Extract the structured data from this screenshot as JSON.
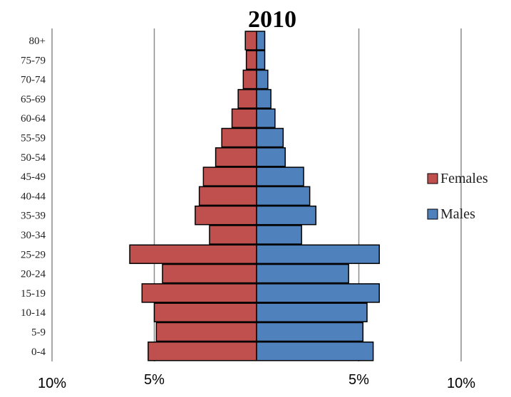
{
  "chart_data": {
    "type": "bar",
    "orientation": "horizontal",
    "subtype": "population-pyramid",
    "title": "2010",
    "categories": [
      "0-4",
      "5-9",
      "10-14",
      "15-19",
      "20-24",
      "25-29",
      "30-34",
      "35-39",
      "40-44",
      "45-49",
      "50-54",
      "55-59",
      "60-64",
      "65-69",
      "70-74",
      "75-79",
      "80+"
    ],
    "x_tick_labels": [
      {
        "value": -10,
        "label": "10%"
      },
      {
        "value": -5,
        "label": "5%"
      },
      {
        "value": 5,
        "label": "5%"
      },
      {
        "value": 10,
        "label": "10%"
      }
    ],
    "xlim": [
      -10,
      10
    ],
    "grid": true,
    "legend_position": "right",
    "series": [
      {
        "name": "Females",
        "side": "left",
        "color": "#c0504d",
        "values": [
          5.3,
          4.9,
          5.0,
          5.6,
          4.6,
          6.2,
          2.3,
          3.0,
          2.8,
          2.6,
          2.0,
          1.7,
          1.2,
          0.9,
          0.65,
          0.5,
          0.55
        ]
      },
      {
        "name": "Males",
        "side": "right",
        "color": "#4f81bd",
        "values": [
          5.7,
          5.2,
          5.4,
          6.0,
          4.5,
          6.0,
          2.2,
          2.9,
          2.6,
          2.3,
          1.4,
          1.3,
          0.9,
          0.7,
          0.55,
          0.4,
          0.4
        ]
      }
    ]
  },
  "legend": {
    "females_label": "Females",
    "males_label": "Males"
  }
}
